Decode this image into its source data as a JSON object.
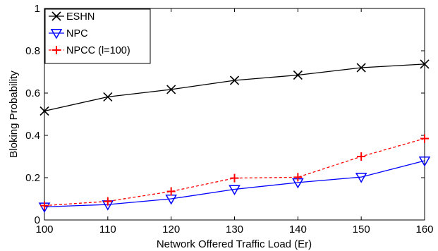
{
  "chart_data": {
    "type": "line",
    "title": "",
    "xlabel": "Network Offered Traffic Load (Er)",
    "ylabel": "Bloking Probability",
    "x": [
      100,
      110,
      120,
      130,
      140,
      150,
      160
    ],
    "xlim": [
      100,
      160
    ],
    "ylim": [
      0,
      1
    ],
    "xticks": [
      "100",
      "110",
      "120",
      "130",
      "140",
      "150",
      "160"
    ],
    "yticks": [
      "0",
      "0.2",
      "0.4",
      "0.6",
      "0.8",
      "1"
    ],
    "grid": false,
    "legend_position": "top-left",
    "series": [
      {
        "name": "ESHN",
        "values": [
          0.515,
          0.582,
          0.617,
          0.66,
          0.685,
          0.72,
          0.737
        ],
        "color": "#000000",
        "marker": "x",
        "line": "solid"
      },
      {
        "name": "NPC",
        "values": [
          0.062,
          0.073,
          0.1,
          0.145,
          0.177,
          0.203,
          0.28
        ],
        "color": "#0000ff",
        "marker": "triangle-down",
        "line": "solid"
      },
      {
        "name": "NPCC (l=100)",
        "values": [
          0.068,
          0.088,
          0.135,
          0.198,
          0.202,
          0.3,
          0.385
        ],
        "color": "#ff0000",
        "marker": "plus",
        "line": "dashed"
      }
    ]
  }
}
